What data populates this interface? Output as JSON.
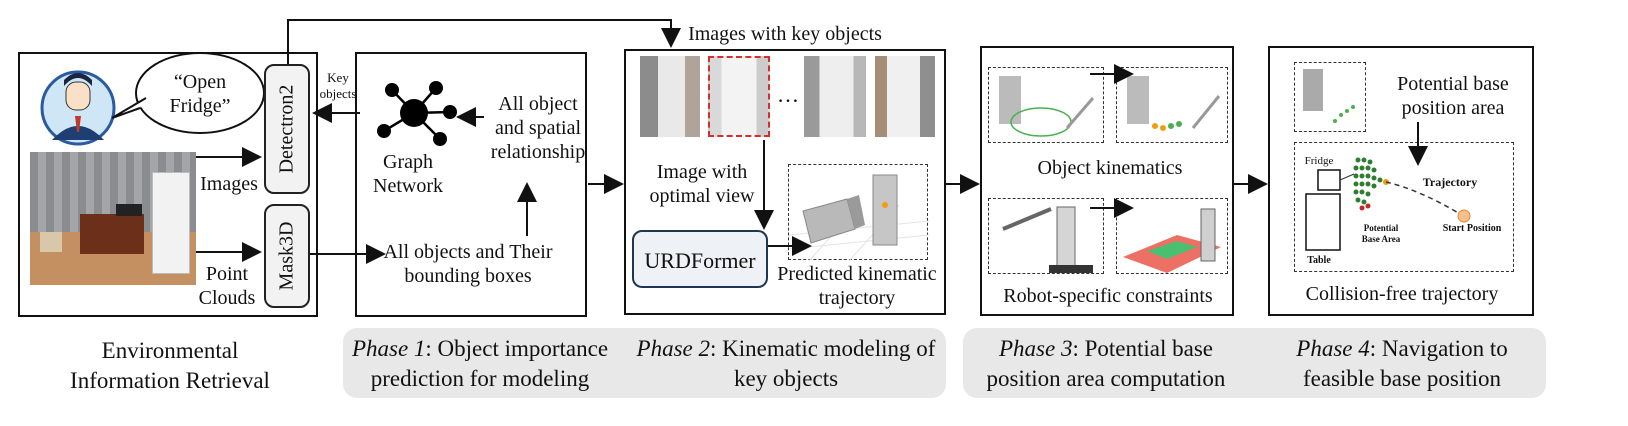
{
  "env": {
    "speech": "“Open Fridge”",
    "images_label": "Images",
    "point_clouds_label": "Point Clouds",
    "detectron_label": "Detectron2",
    "mask3d_label": "Mask3D",
    "key_objects_label": "Key objects",
    "caption": "Environmental Information Retrieval"
  },
  "phase1": {
    "graph_label": "Graph Network",
    "relationship_label": "All object and spatial relationship",
    "bboxes_label": "All objects and Their bounding boxes",
    "caption_italic": "Phase 1",
    "caption_rest": ": Object importance prediction for modeling"
  },
  "phase2": {
    "top_label": "Images with key objects",
    "ellipsis": "…",
    "optimal_view_label": "Image with optimal view",
    "urdformer_label": "URDFormer",
    "predicted_label": "Predicted kinematic trajectory",
    "caption_italic": "Phase 2",
    "caption_rest": ": Kinematic modeling of key objects"
  },
  "phase3": {
    "object_kinematics_label": "Object kinematics",
    "robot_constraints_label": "Robot-specific constraints",
    "caption_italic": "Phase 3",
    "caption_rest": ": Potential base position area computation"
  },
  "phase4": {
    "potential_area_label": "Potential base position area",
    "fridge_label": "Fridge",
    "trajectory_label": "Trajectory",
    "potential_base_label": "Potential Base Area",
    "start_label": "Start Position",
    "table_label": "Table",
    "collision_label": "Collision-free trajectory",
    "caption_italic": "Phase 4",
    "caption_rest": ": Navigation to feasible base position"
  }
}
